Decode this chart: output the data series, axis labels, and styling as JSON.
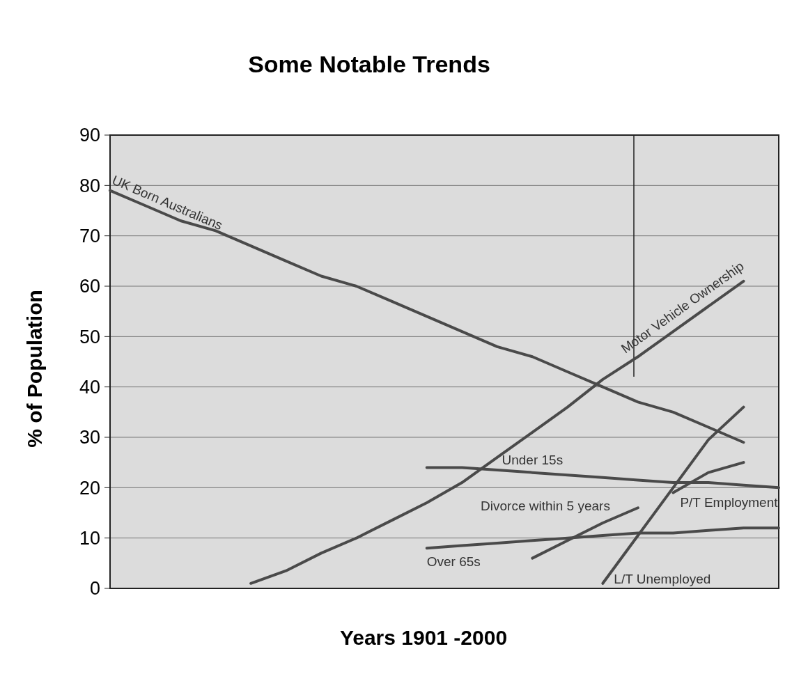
{
  "chart_data": {
    "type": "line",
    "title": "Some Notable Trends",
    "xlabel": "Years 1901 -2000",
    "ylabel": "% of Population",
    "categories": [
      null,
      null,
      null,
      null,
      null,
      null,
      null,
      null,
      null,
      null,
      null,
      null,
      null,
      null,
      null,
      null,
      null,
      null,
      null,
      null
    ],
    "ylim": [
      0,
      90
    ],
    "yticks": [
      0,
      10,
      20,
      30,
      40,
      50,
      60,
      70,
      80,
      90
    ],
    "grid": "y",
    "tick_labels": "y",
    "series": [
      {
        "name": "UK Born Australians",
        "color": "#4a4a4a",
        "values": [
          79,
          76,
          73,
          71,
          68,
          65,
          62,
          60,
          57,
          54,
          51,
          48,
          46,
          43,
          40,
          37,
          35,
          32,
          29,
          null
        ]
      },
      {
        "name": "Motor Vehicle Ownership",
        "color": "#4a4a4a",
        "values": [
          null,
          null,
          null,
          null,
          1,
          3.5,
          7,
          10,
          13.5,
          17,
          21,
          26,
          31,
          36,
          41.5,
          46,
          51,
          56,
          61,
          null
        ]
      },
      {
        "name": "Under 15s",
        "color": "#4a4a4a",
        "values": [
          null,
          null,
          null,
          null,
          null,
          null,
          null,
          null,
          null,
          24,
          24,
          23.5,
          23,
          22.5,
          22,
          21.5,
          21,
          21,
          20.5,
          20
        ]
      },
      {
        "name": "Divorce within 5 years",
        "color": "#4a4a4a",
        "values": [
          null,
          null,
          null,
          null,
          null,
          null,
          null,
          null,
          null,
          null,
          null,
          null,
          6,
          9.5,
          13,
          16,
          null,
          null,
          null,
          null
        ]
      },
      {
        "name": "P/T Employment",
        "color": "#4a4a4a",
        "values": [
          null,
          null,
          null,
          null,
          null,
          null,
          null,
          null,
          null,
          null,
          null,
          null,
          null,
          null,
          null,
          null,
          19,
          23,
          25,
          null
        ]
      },
      {
        "name": "Over 65s",
        "color": "#4a4a4a",
        "values": [
          null,
          null,
          null,
          null,
          null,
          null,
          null,
          null,
          null,
          8,
          8.5,
          9,
          9.5,
          10,
          10.5,
          11,
          11,
          11.5,
          12,
          12
        ]
      },
      {
        "name": "L/T Unemployed",
        "color": "#4a4a4a",
        "values": [
          null,
          null,
          null,
          null,
          null,
          null,
          null,
          null,
          null,
          null,
          null,
          null,
          null,
          null,
          1,
          10.5,
          20,
          29.5,
          36,
          null
        ]
      }
    ]
  }
}
